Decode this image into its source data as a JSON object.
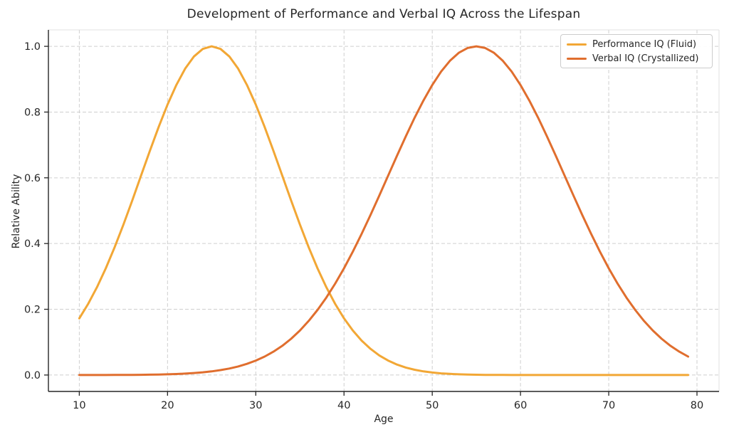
{
  "chart_data": {
    "type": "line",
    "title": "Development of Performance and Verbal IQ Across the Lifespan",
    "xlabel": "Age",
    "ylabel": "Relative Ability",
    "xlim": [
      6.5,
      82.5
    ],
    "ylim": [
      -0.05,
      1.05
    ],
    "xticks": [
      10,
      20,
      30,
      40,
      50,
      60,
      70,
      80
    ],
    "yticks": [
      0.0,
      0.2,
      0.4,
      0.6,
      0.8,
      1.0
    ],
    "ytick_labels": [
      "0.0",
      "0.2",
      "0.4",
      "0.6",
      "0.8",
      "1.0"
    ],
    "grid": true,
    "grid_style": "dashed",
    "legend_position": "upper right",
    "x": [
      10,
      11,
      12,
      13,
      14,
      15,
      16,
      17,
      18,
      19,
      20,
      21,
      22,
      23,
      24,
      25,
      26,
      27,
      28,
      29,
      30,
      31,
      32,
      33,
      34,
      35,
      36,
      37,
      38,
      39,
      40,
      41,
      42,
      43,
      44,
      45,
      46,
      47,
      48,
      49,
      50,
      51,
      52,
      53,
      54,
      55,
      56,
      57,
      58,
      59,
      60,
      61,
      62,
      63,
      64,
      65,
      66,
      67,
      68,
      69,
      70,
      71,
      72,
      73,
      74,
      75,
      76,
      77,
      78,
      79
    ],
    "series": [
      {
        "name": "Performance IQ (Fluid)",
        "color": "#F2A735",
        "peak_age": 25,
        "values": [
          0.1724,
          0.2163,
          0.2671,
          0.3247,
          0.3886,
          0.4578,
          0.5311,
          0.6065,
          0.6819,
          0.7548,
          0.8226,
          0.8825,
          0.9321,
          0.9692,
          0.9922,
          1.0,
          0.9922,
          0.9692,
          0.9321,
          0.8825,
          0.8226,
          0.7548,
          0.6819,
          0.6065,
          0.5311,
          0.4578,
          0.3886,
          0.3247,
          0.2671,
          0.2163,
          0.1724,
          0.1353,
          0.1046,
          0.0796,
          0.0596,
          0.0439,
          0.0319,
          0.0228,
          0.016,
          0.0111,
          0.0076,
          0.0051,
          0.0034,
          0.0022,
          0.0014,
          0.0009,
          0.0005,
          0.0003,
          0.0002,
          0.0001,
          0.0001,
          0,
          0,
          0,
          0,
          0,
          0,
          0,
          0,
          0,
          0,
          0,
          0,
          0,
          0,
          0,
          0,
          0,
          0,
          0
        ]
      },
      {
        "name": "Verbal IQ (Crystallized)",
        "color": "#E06E2E",
        "peak_age": 55,
        "values": [
          0,
          0.0001,
          0.0001,
          0.0001,
          0.0002,
          0.0003,
          0.0005,
          0.0007,
          0.0011,
          0.0015,
          0.0022,
          0.0031,
          0.0043,
          0.006,
          0.0082,
          0.0111,
          0.0149,
          0.0198,
          0.0261,
          0.034,
          0.0439,
          0.0561,
          0.071,
          0.0889,
          0.1102,
          0.1353,
          0.1645,
          0.1979,
          0.2357,
          0.278,
          0.3247,
          0.3753,
          0.4296,
          0.4868,
          0.5461,
          0.6065,
          0.667,
          0.7261,
          0.7827,
          0.8353,
          0.8825,
          0.9231,
          0.956,
          0.9802,
          0.995,
          1.0,
          0.995,
          0.9802,
          0.956,
          0.9231,
          0.8825,
          0.8353,
          0.7827,
          0.7261,
          0.667,
          0.6065,
          0.5461,
          0.4868,
          0.4296,
          0.3753,
          0.3247,
          0.278,
          0.2357,
          0.1979,
          0.1645,
          0.1353,
          0.1102,
          0.0889,
          0.071,
          0.0561
        ]
      }
    ],
    "style": {
      "text_color": "#262626",
      "grid_color": "#cfcfcf",
      "spine_color": "#262626",
      "minor_spine_color": "#e0e0e0",
      "line_width": 3
    }
  }
}
